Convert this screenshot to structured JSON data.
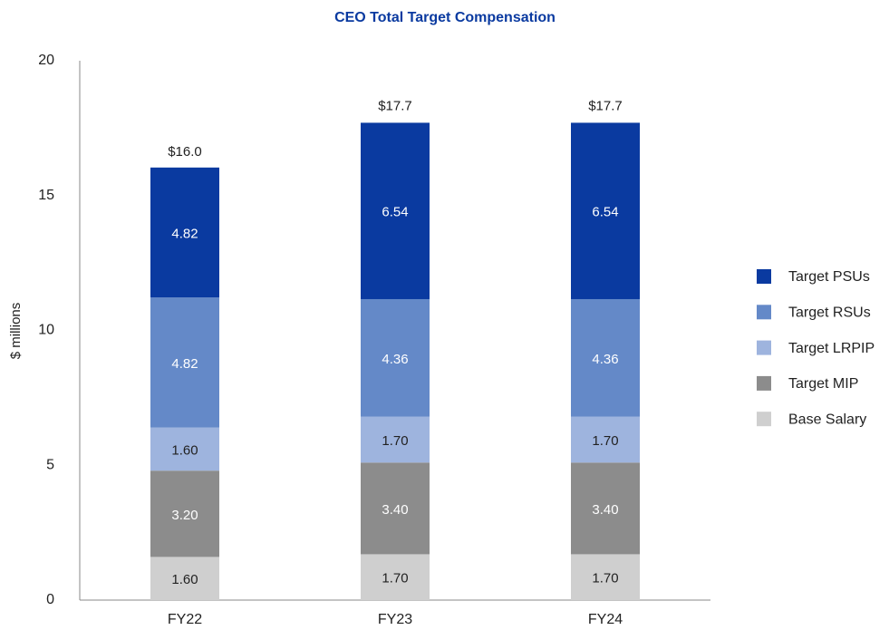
{
  "chart_data": {
    "type": "stacked_bar",
    "title": "CEO Total Target Compensation",
    "y_label": "$ millions",
    "categories": [
      "FY22",
      "FY23",
      "FY24"
    ],
    "series": [
      {
        "name": "Base Salary",
        "color": "#cfcfcf",
        "values": [
          1.6,
          1.7,
          1.7
        ],
        "value_labels": [
          "1.60",
          "1.70",
          "1.70"
        ]
      },
      {
        "name": "Target MIP",
        "color": "#8c8c8c",
        "values": [
          3.2,
          3.4,
          3.4
        ],
        "value_labels": [
          "3.20",
          "3.40",
          "3.40"
        ]
      },
      {
        "name": "Target LRPIP",
        "color": "#9eb4de",
        "values": [
          1.6,
          1.7,
          1.7
        ],
        "value_labels": [
          "1.60",
          "1.70",
          "1.70"
        ]
      },
      {
        "name": "Target RSUs",
        "color": "#6489c8",
        "values": [
          4.82,
          4.36,
          4.36
        ],
        "value_labels": [
          "4.82",
          "4.36",
          "4.36"
        ]
      },
      {
        "name": "Target PSUs",
        "color": "#0a3aa0",
        "values": [
          4.82,
          6.54,
          6.54
        ],
        "value_labels": [
          "4.82",
          "6.54",
          "6.54"
        ]
      }
    ],
    "totals": [
      16.0,
      17.7,
      17.7
    ],
    "total_labels": [
      "$16.0",
      "$17.7",
      "$17.7"
    ],
    "ylim": [
      0,
      20
    ],
    "yticks": [
      0,
      5,
      10,
      15,
      20
    ],
    "grid": false,
    "legend": "right"
  }
}
